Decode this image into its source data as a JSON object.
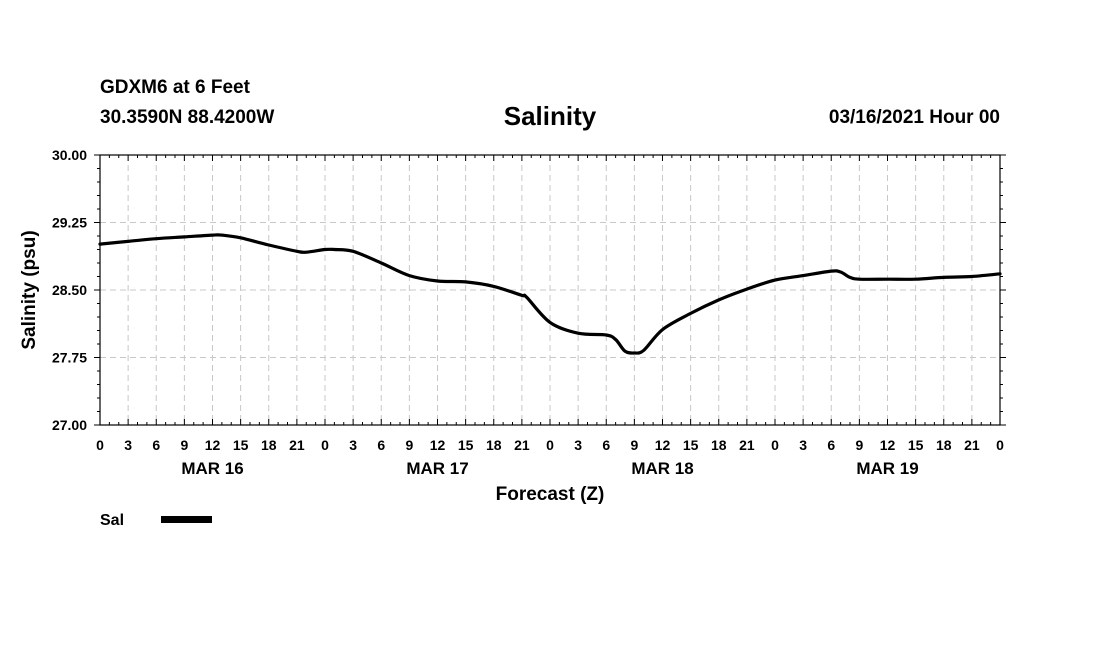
{
  "header": {
    "station": "GDXM6 at 6 Feet",
    "coords": "30.3590N 88.4200W",
    "datetime": "03/16/2021 Hour 00"
  },
  "chart_data": {
    "type": "line",
    "title": "Salinity",
    "xlabel": "Forecast (Z)",
    "ylabel": "Salinity (psu)",
    "x_unit": "hours since 03/16/2021 00Z",
    "xlim": [
      0,
      96
    ],
    "ylim": [
      27.0,
      30.0
    ],
    "yticks": [
      27.0,
      27.75,
      28.5,
      29.25,
      30.0
    ],
    "ytick_labels": [
      "27.00",
      "27.75",
      "28.50",
      "29.25",
      "30.00"
    ],
    "xticks": [
      0,
      3,
      6,
      9,
      12,
      15,
      18,
      21,
      24,
      27,
      30,
      33,
      36,
      39,
      42,
      45,
      48,
      51,
      54,
      57,
      60,
      63,
      66,
      69,
      72,
      75,
      78,
      81,
      84,
      87,
      90,
      93,
      96
    ],
    "xtick_labels": [
      "0",
      "3",
      "6",
      "9",
      "12",
      "15",
      "18",
      "21",
      "0",
      "3",
      "6",
      "9",
      "12",
      "15",
      "18",
      "21",
      "0",
      "3",
      "6",
      "9",
      "12",
      "15",
      "18",
      "21",
      "0",
      "3",
      "6",
      "9",
      "12",
      "15",
      "18",
      "21",
      "0"
    ],
    "day_labels": [
      {
        "hour": 12,
        "label": "MAR 16"
      },
      {
        "hour": 36,
        "label": "MAR 17"
      },
      {
        "hour": 60,
        "label": "MAR 18"
      },
      {
        "hour": 84,
        "label": "MAR 19"
      }
    ],
    "grid": true,
    "legend": {
      "position": "bottom-left",
      "entries": [
        {
          "label": "Sal",
          "color": "#000000"
        }
      ]
    },
    "series": [
      {
        "name": "Sal",
        "color": "#000000",
        "x": [
          0,
          3,
          6,
          9,
          12,
          13,
          15,
          18,
          21,
          22,
          24,
          25,
          27,
          30,
          33,
          36,
          39,
          42,
          45,
          45.5,
          48,
          51,
          54,
          55,
          56,
          57,
          58,
          60,
          63,
          66,
          69,
          72,
          75,
          78,
          79,
          80,
          81,
          84,
          87,
          90,
          93,
          96
        ],
        "values": [
          29.01,
          29.04,
          29.07,
          29.09,
          29.11,
          29.11,
          29.08,
          29.0,
          28.93,
          28.92,
          28.95,
          28.95,
          28.93,
          28.8,
          28.66,
          28.6,
          28.59,
          28.54,
          28.44,
          28.42,
          28.14,
          28.02,
          28.0,
          27.95,
          27.82,
          27.8,
          27.83,
          28.06,
          28.24,
          28.39,
          28.51,
          28.61,
          28.66,
          28.71,
          28.7,
          28.64,
          28.62,
          28.62,
          28.62,
          28.64,
          28.65,
          28.68
        ]
      }
    ]
  }
}
